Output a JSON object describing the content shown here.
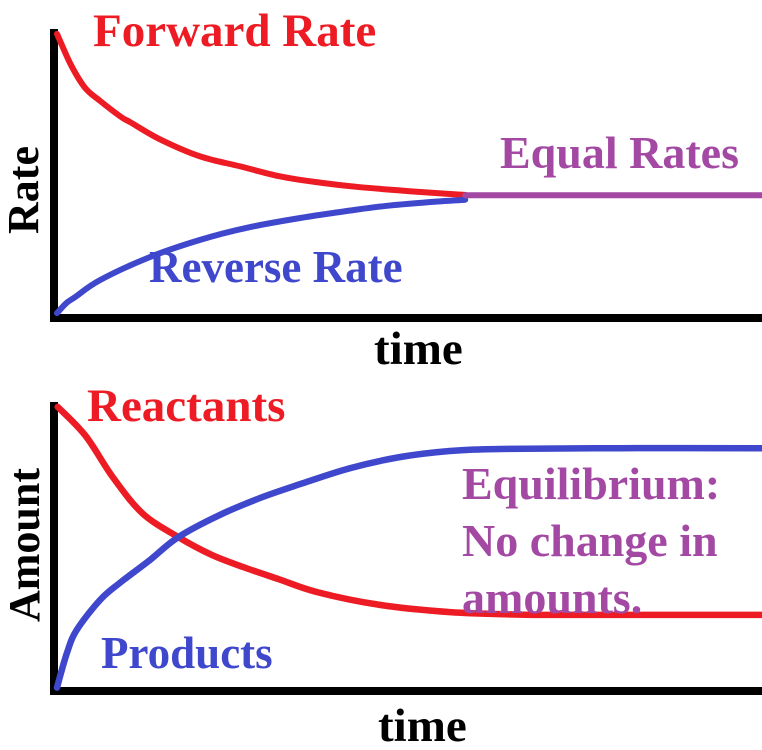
{
  "palette": {
    "red": "#ED1C24",
    "blue": "#3F48CC",
    "purple": "#A349A4",
    "axis_black": "#000000",
    "background": "#FFFFFF"
  },
  "chart_data": [
    {
      "type": "line",
      "title": "",
      "xlabel": "time",
      "ylabel": "Rate",
      "grid": false,
      "legend": "inline-labels",
      "axes": "qualitative-no-ticks",
      "xlim": [
        0,
        1
      ],
      "ylim": [
        0,
        1
      ],
      "axis_color": "#000000",
      "series": [
        {
          "id": "forward-rate",
          "label": "Forward Rate",
          "color": "#ED1C24",
          "width": 6,
          "points": [
            [
              0,
              0.99
            ],
            [
              0.02,
              0.88
            ],
            [
              0.04,
              0.8
            ],
            [
              0.061,
              0.755
            ],
            [
              0.09,
              0.7
            ],
            [
              0.104,
              0.68
            ],
            [
              0.146,
              0.62
            ],
            [
              0.203,
              0.56
            ],
            [
              0.26,
              0.525
            ],
            [
              0.316,
              0.49
            ],
            [
              0.373,
              0.468
            ],
            [
              0.43,
              0.452
            ],
            [
              0.5,
              0.438
            ],
            [
              0.545,
              0.43
            ],
            [
              0.579,
              0.425
            ]
          ]
        },
        {
          "id": "reverse-rate",
          "label": "Reverse Rate",
          "color": "#3F48CC",
          "width": 6,
          "points": [
            [
              0,
              0.01
            ],
            [
              0.013,
              0.045
            ],
            [
              0.026,
              0.067
            ],
            [
              0.061,
              0.126
            ],
            [
              0.132,
              0.207
            ],
            [
              0.203,
              0.267
            ],
            [
              0.27,
              0.31
            ],
            [
              0.345,
              0.344
            ],
            [
              0.41,
              0.368
            ],
            [
              0.462,
              0.385
            ],
            [
              0.52,
              0.398
            ],
            [
              0.579,
              0.408
            ]
          ]
        },
        {
          "id": "equal-rates",
          "label": "Equal Rates",
          "color": "#A349A4",
          "width": 6,
          "points": [
            [
              0.579,
              0.424
            ],
            [
              1,
              0.424
            ]
          ]
        }
      ]
    },
    {
      "type": "line",
      "title": "",
      "xlabel": "time",
      "ylabel": "Amount",
      "grid": false,
      "legend": "inline-labels",
      "axes": "qualitative-no-ticks",
      "xlim": [
        0,
        1
      ],
      "ylim": [
        0,
        1
      ],
      "axis_color": "#000000",
      "annotation": {
        "text": "Equilibrium:\nNo change in\namounts.",
        "color": "#A349A4"
      },
      "series": [
        {
          "id": "reactants",
          "label": "Reactants",
          "color": "#ED1C24",
          "width": 6.5,
          "points": [
            [
              0.001,
              0.99
            ],
            [
              0.04,
              0.89
            ],
            [
              0.079,
              0.744
            ],
            [
              0.121,
              0.617
            ],
            [
              0.172,
              0.533
            ],
            [
              0.22,
              0.47
            ],
            [
              0.264,
              0.428
            ],
            [
              0.315,
              0.385
            ],
            [
              0.369,
              0.34
            ],
            [
              0.458,
              0.295
            ],
            [
              0.557,
              0.27
            ],
            [
              0.657,
              0.261
            ],
            [
              0.78,
              0.26
            ],
            [
              1,
              0.26
            ]
          ]
        },
        {
          "id": "products",
          "label": "Products",
          "color": "#3F48CC",
          "width": 6.5,
          "points": [
            [
              0,
              0.005
            ],
            [
              0.014,
              0.126
            ],
            [
              0.028,
              0.207
            ],
            [
              0.061,
              0.312
            ],
            [
              0.089,
              0.372
            ],
            [
              0.132,
              0.453
            ],
            [
              0.172,
              0.533
            ],
            [
              0.231,
              0.611
            ],
            [
              0.288,
              0.67
            ],
            [
              0.345,
              0.719
            ],
            [
              0.416,
              0.775
            ],
            [
              0.487,
              0.814
            ],
            [
              0.557,
              0.835
            ],
            [
              0.628,
              0.842
            ],
            [
              0.8,
              0.845
            ],
            [
              1,
              0.845
            ]
          ]
        }
      ]
    }
  ]
}
